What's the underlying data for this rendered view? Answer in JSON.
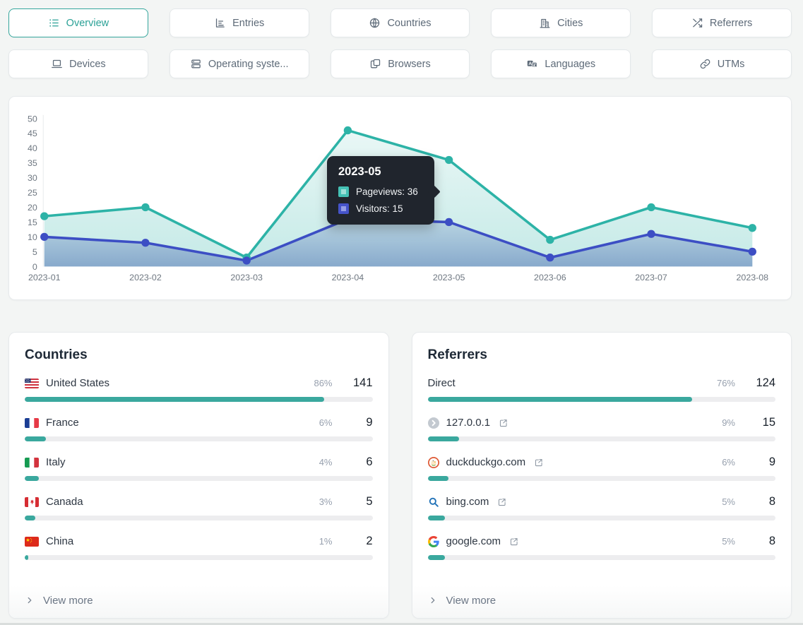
{
  "colors": {
    "accent": "#36a79d",
    "pageviews_line": "#2db3a7",
    "visitors_line": "#3c4ec4",
    "bar_fill": "#3aa89e",
    "tooltip_bg": "#20252d"
  },
  "nav": {
    "tabs": [
      {
        "label": "Overview",
        "icon": "list-icon",
        "active": true
      },
      {
        "label": "Entries",
        "icon": "bar-chart-icon",
        "active": false
      },
      {
        "label": "Countries",
        "icon": "globe-icon",
        "active": false
      },
      {
        "label": "Cities",
        "icon": "building-icon",
        "active": false
      },
      {
        "label": "Referrers",
        "icon": "shuffle-icon",
        "active": false
      },
      {
        "label": "Devices",
        "icon": "laptop-icon",
        "active": false
      },
      {
        "label": "Operating syste...",
        "icon": "server-icon",
        "active": false
      },
      {
        "label": "Browsers",
        "icon": "browser-icon",
        "active": false
      },
      {
        "label": "Languages",
        "icon": "translate-icon",
        "active": false
      },
      {
        "label": "UTMs",
        "icon": "link-icon",
        "active": false
      }
    ]
  },
  "chart_data": {
    "type": "line",
    "x": [
      "2023-01",
      "2023-02",
      "2023-03",
      "2023-04",
      "2023-05",
      "2023-06",
      "2023-07",
      "2023-08"
    ],
    "series": [
      {
        "name": "Pageviews",
        "color": "#2db3a7",
        "values": [
          17,
          20,
          3,
          46,
          36,
          9,
          20,
          13
        ]
      },
      {
        "name": "Visitors",
        "color": "#3c4ec4",
        "values": [
          10,
          8,
          2,
          16,
          15,
          3,
          11,
          5
        ]
      }
    ],
    "ylim": [
      0,
      50
    ],
    "yticks": [
      0,
      5,
      10,
      15,
      20,
      25,
      30,
      35,
      40,
      45,
      50
    ],
    "grid": false,
    "area_fill": true,
    "legend_position": "tooltip"
  },
  "tooltip": {
    "title": "2023-05",
    "items": [
      {
        "text": "Pageviews: 36",
        "swatch_outer": "#45c1b5",
        "swatch_inner": "#9edfd8"
      },
      {
        "text": "Visitors: 15",
        "swatch_outer": "#4553c9",
        "swatch_inner": "#959de5"
      }
    ]
  },
  "cards": [
    {
      "title": "Countries",
      "view_more": "View more",
      "rows": [
        {
          "icon": "flag-us",
          "label": "United States",
          "percent": 86,
          "count": 141,
          "external": false
        },
        {
          "icon": "flag-fr",
          "label": "France",
          "percent": 6,
          "count": 9,
          "external": false
        },
        {
          "icon": "flag-it",
          "label": "Italy",
          "percent": 4,
          "count": 6,
          "external": false
        },
        {
          "icon": "flag-ca",
          "label": "Canada",
          "percent": 3,
          "count": 5,
          "external": false
        },
        {
          "icon": "flag-cn",
          "label": "China",
          "percent": 1,
          "count": 2,
          "external": false
        }
      ]
    },
    {
      "title": "Referrers",
      "view_more": "View more",
      "rows": [
        {
          "icon": null,
          "label": "Direct",
          "percent": 76,
          "count": 124,
          "external": false
        },
        {
          "icon": "favicon-default",
          "label": "127.0.0.1",
          "percent": 9,
          "count": 15,
          "external": true
        },
        {
          "icon": "favicon-duckduckgo",
          "label": "duckduckgo.com",
          "percent": 6,
          "count": 9,
          "external": true
        },
        {
          "icon": "favicon-bing",
          "label": "bing.com",
          "percent": 5,
          "count": 8,
          "external": true
        },
        {
          "icon": "favicon-google",
          "label": "google.com",
          "percent": 5,
          "count": 8,
          "external": true
        }
      ]
    }
  ]
}
